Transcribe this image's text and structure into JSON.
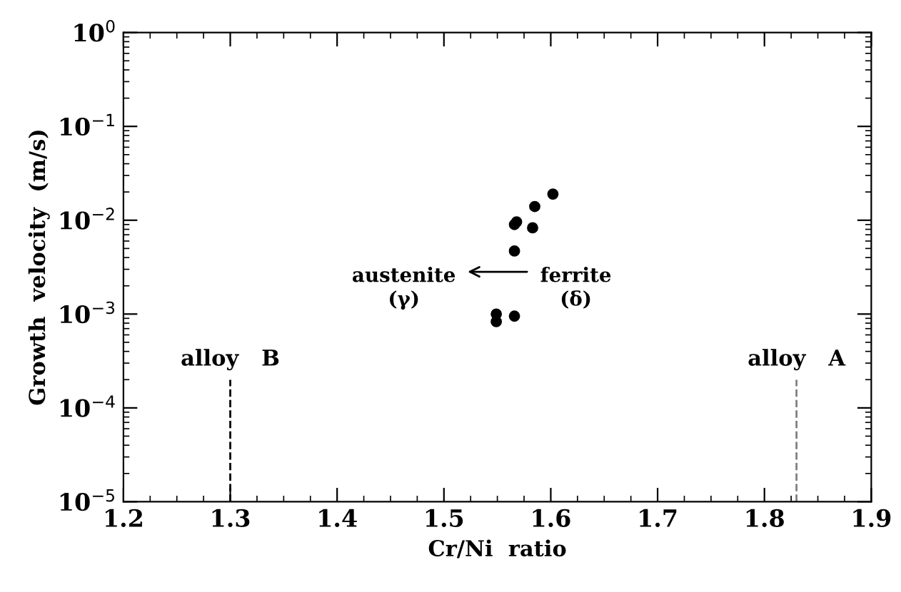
{
  "chart_data": {
    "type": "scatter",
    "xlabel": "Cr/Ni  ratio",
    "ylabel": "Growth  velocity  (m/s)",
    "x": [
      1.602,
      1.585,
      1.568,
      1.566,
      1.583,
      1.566,
      1.549,
      1.549,
      1.566
    ],
    "series": [
      {
        "color": "#000000",
        "values": [
          0.019,
          0.014,
          0.0096,
          0.009,
          0.0083,
          0.0047,
          0.001,
          0.00083,
          0.00095
        ]
      }
    ],
    "marker": "circle",
    "log": "y",
    "grid": false,
    "legend": false,
    "xlim": [
      1.2,
      1.9
    ],
    "xticks": [
      1.2,
      1.3,
      1.4,
      1.5,
      1.6,
      1.7,
      1.8,
      1.9
    ],
    "ylim": [
      1e-05,
      1
    ],
    "yticks": [
      {
        "value": 1e-05,
        "label": "10$^{−5}$"
      },
      {
        "value": 0.0001,
        "label": "10$^{−4}$"
      },
      {
        "value": 0.001,
        "label": "10$^{−3}$"
      },
      {
        "value": 0.01,
        "label": "10$^{−2}$"
      },
      {
        "value": 0.1,
        "label": "10$^{−1}$"
      },
      {
        "value": 1,
        "label": "10$^{0}$"
      }
    ],
    "ref_lines": [
      {
        "axis": "x",
        "value": 1.3,
        "label": "alloy   B",
        "color": "#000000",
        "line_style": "dashed"
      },
      {
        "axis": "x",
        "value": 1.83,
        "label": "alloy   A",
        "color": "#808080",
        "line_style": "dashed"
      }
    ],
    "annotations": [
      "austenite\n(γ)",
      "ferrite\n(δ)"
    ]
  }
}
